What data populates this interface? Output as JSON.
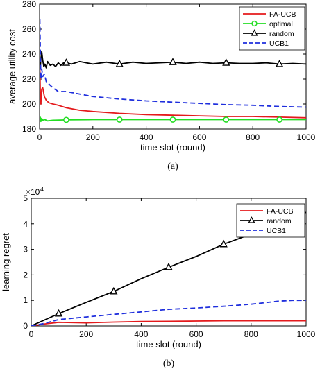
{
  "chart_data": [
    {
      "id": "a",
      "type": "line",
      "caption": "(a)",
      "xlabel": "time slot (round)",
      "ylabel": "average utility cost",
      "xlim": [
        0,
        1000
      ],
      "ylim": [
        180,
        280
      ],
      "xticks": [
        0,
        200,
        400,
        600,
        800,
        1000
      ],
      "yticks": [
        180,
        200,
        220,
        240,
        260,
        280
      ],
      "legend_position": "top-right",
      "grid": false,
      "series": [
        {
          "name": "FA-UCB",
          "color": "#e41a1c",
          "style": "solid",
          "marker": "none",
          "x": [
            1,
            3,
            5,
            8,
            12,
            18,
            25,
            35,
            50,
            70,
            100,
            150,
            200,
            300,
            400,
            500,
            600,
            700,
            800,
            900,
            1000
          ],
          "y": [
            232,
            205,
            200,
            212,
            213,
            206,
            203,
            201,
            200,
            199,
            197,
            195,
            194,
            192.5,
            191.5,
            191,
            190.5,
            190,
            190,
            189.5,
            189
          ]
        },
        {
          "name": "optimal",
          "color": "#22dd22",
          "style": "solid",
          "marker": "circle",
          "x": [
            1,
            3,
            5,
            8,
            12,
            20,
            30,
            50,
            100,
            200,
            300,
            400,
            500,
            600,
            700,
            800,
            900,
            1000
          ],
          "y": [
            190,
            189,
            186,
            188.5,
            187,
            187.5,
            186.5,
            187,
            187.3,
            187.5,
            187.5,
            187.5,
            187.5,
            187.5,
            187.5,
            187.5,
            187.5,
            187.5
          ],
          "marker_x": [
            100,
            300,
            500,
            700,
            900
          ]
        },
        {
          "name": "random",
          "color": "#000000",
          "style": "solid",
          "marker": "triangle",
          "x": [
            1,
            3,
            5,
            8,
            12,
            16,
            20,
            25,
            30,
            40,
            50,
            60,
            70,
            80,
            90,
            100,
            120,
            150,
            200,
            250,
            300,
            350,
            400,
            450,
            500,
            550,
            600,
            650,
            700,
            750,
            800,
            850,
            900,
            950,
            1000
          ],
          "y": [
            233,
            230,
            236,
            242,
            235,
            230,
            232,
            229,
            234,
            231,
            232,
            230,
            233,
            231,
            233,
            233,
            232,
            234,
            232,
            233.5,
            232,
            233.5,
            232.5,
            233,
            233.5,
            232.5,
            233.5,
            232.5,
            233,
            232.5,
            232.5,
            233,
            232,
            232.5,
            232
          ],
          "marker_x": [
            100,
            300,
            500,
            700,
            900
          ]
        },
        {
          "name": "UCB1",
          "color": "#1f2fdd",
          "style": "dashed",
          "marker": "none",
          "x": [
            1,
            3,
            5,
            8,
            12,
            18,
            25,
            35,
            50,
            70,
            100,
            150,
            200,
            300,
            400,
            500,
            600,
            700,
            800,
            900,
            1000
          ],
          "y": [
            268,
            240,
            220,
            228,
            222,
            224,
            218,
            216,
            213,
            210,
            210,
            208,
            206,
            204,
            202.5,
            201.5,
            200.5,
            199.5,
            199,
            198,
            197.5
          ]
        }
      ]
    },
    {
      "id": "b",
      "type": "line",
      "caption": "(b)",
      "xlabel": "time slot (round)",
      "ylabel": "learning regret",
      "y_exponent": "×10",
      "y_exponent_power": "4",
      "xlim": [
        0,
        1000
      ],
      "ylim": [
        0,
        5
      ],
      "xticks": [
        0,
        200,
        400,
        600,
        800,
        1000
      ],
      "yticks": [
        0,
        1,
        2,
        3,
        4,
        5
      ],
      "legend_position": "top-right",
      "grid": false,
      "series": [
        {
          "name": "FA-UCB",
          "color": "#e41a1c",
          "style": "solid",
          "marker": "none",
          "x": [
            0,
            50,
            100,
            200,
            300,
            400,
            500,
            600,
            700,
            800,
            900,
            1000
          ],
          "y": [
            0,
            0.08,
            0.14,
            0.12,
            0.15,
            0.17,
            0.18,
            0.19,
            0.2,
            0.2,
            0.2,
            0.2
          ]
        },
        {
          "name": "random",
          "color": "#000000",
          "style": "solid",
          "marker": "triangle",
          "x": [
            0,
            100,
            200,
            300,
            400,
            500,
            600,
            700,
            800,
            900,
            1000
          ],
          "y": [
            0,
            0.48,
            0.92,
            1.35,
            1.85,
            2.3,
            2.72,
            3.2,
            3.6,
            4.0,
            4.45
          ],
          "marker_x": [
            100,
            300,
            500,
            700
          ]
        },
        {
          "name": "UCB1",
          "color": "#1f2fdd",
          "style": "dashed",
          "marker": "none",
          "x": [
            0,
            50,
            100,
            200,
            300,
            400,
            500,
            600,
            700,
            800,
            900,
            950,
            1000
          ],
          "y": [
            0,
            0.1,
            0.25,
            0.35,
            0.45,
            0.55,
            0.65,
            0.7,
            0.77,
            0.85,
            0.97,
            1.0,
            1.0
          ]
        }
      ]
    }
  ]
}
